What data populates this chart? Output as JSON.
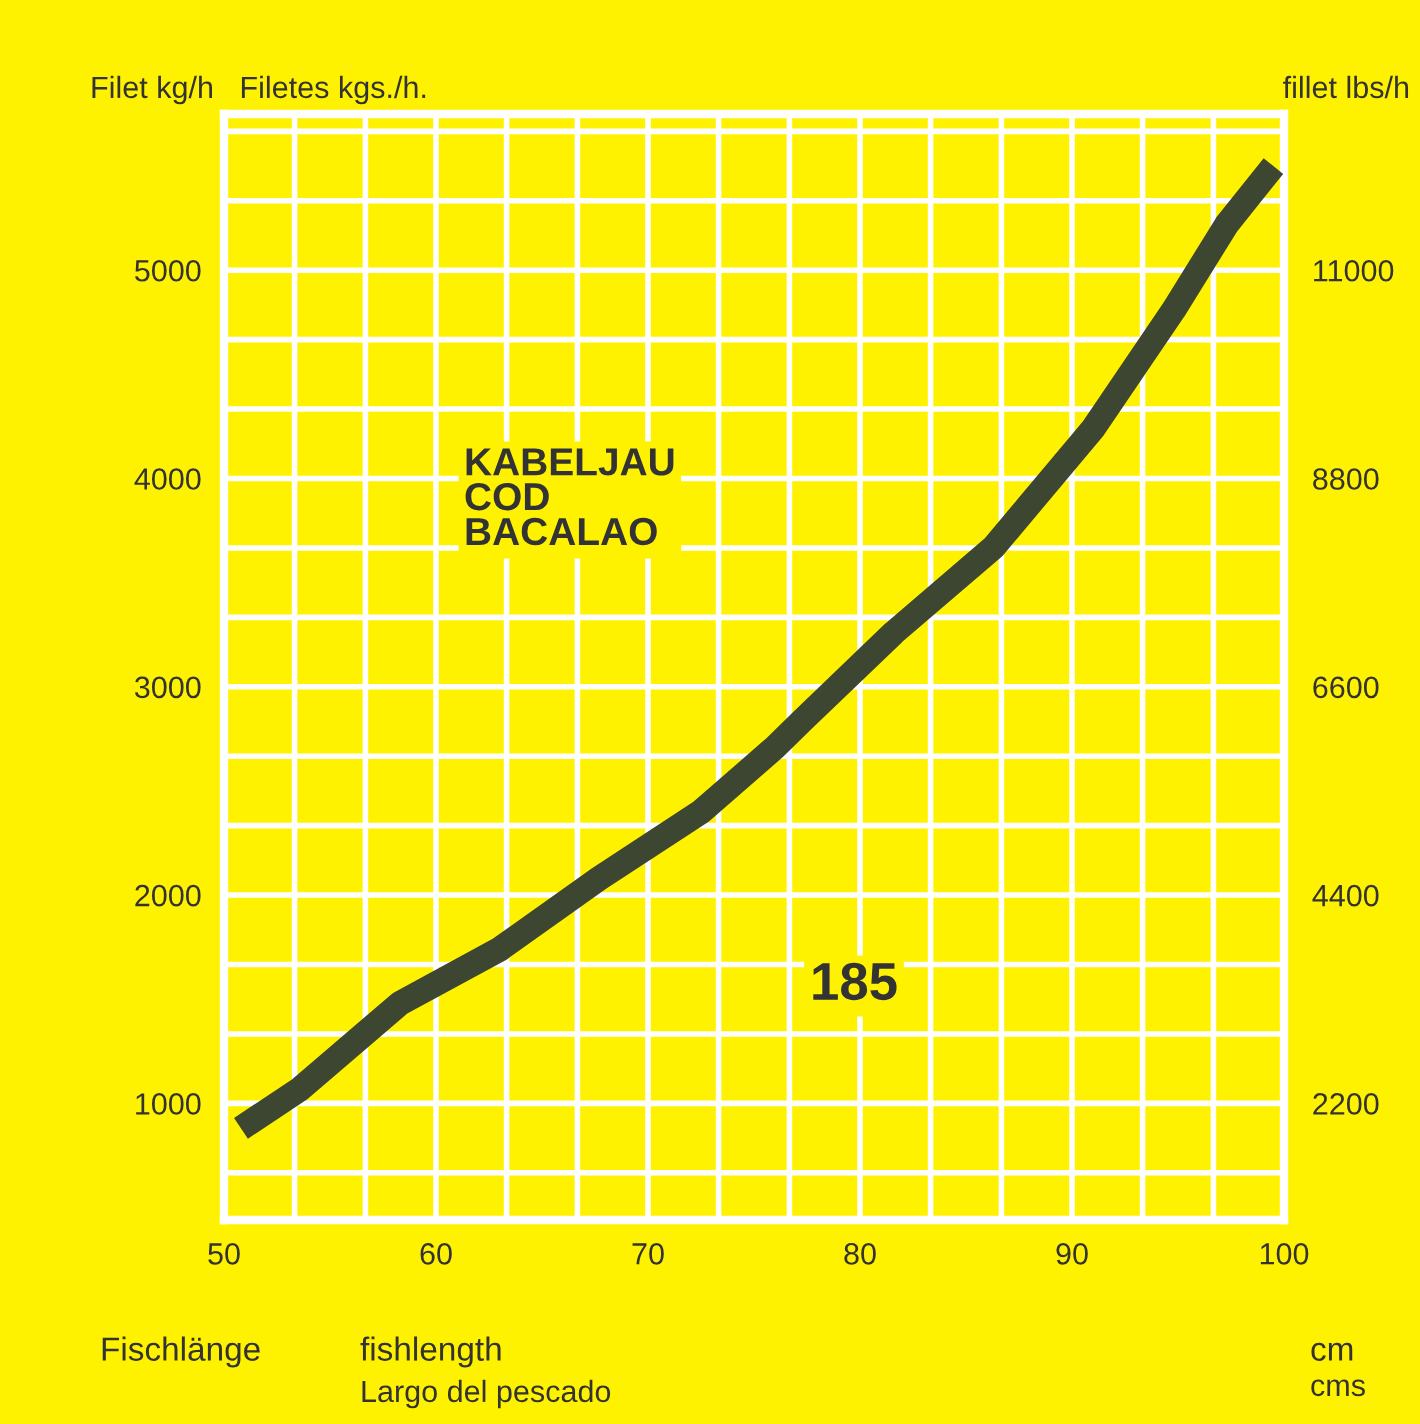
{
  "chart_data": {
    "type": "line",
    "ylabel": "Filet kg/h   Filetes kgs./h.",
    "y2label": "fillet lbs/h",
    "xlabel": "Fischlänge",
    "annotations": [
      "fishlength",
      "Largo del pescado",
      "cm",
      "cms",
      "KABELJAU\nCOD\nBACALAO",
      "185"
    ],
    "series": [
      {
        "color": "#3d4630",
        "x": [
          50.8,
          53.6,
          58.3,
          63,
          67.7,
          72.5,
          76,
          77.2,
          81.6,
          86.3,
          91,
          94.8,
          97.3,
          99.5
        ],
        "values": [
          880,
          1070,
          1480,
          1740,
          2080,
          2400,
          2710,
          2830,
          3260,
          3670,
          4240,
          4810,
          5220,
          5500
        ]
      }
    ],
    "xlim": [
      50,
      100
    ],
    "ylim": [
      440,
      5750
    ],
    "y2lim": [
      968,
      12650
    ],
    "xticks": [
      50,
      {
        "value": 53.33,
        "label": null
      },
      {
        "value": 56.67,
        "label": null
      },
      60,
      {
        "value": 63.33,
        "label": null
      },
      {
        "value": 66.67,
        "label": null
      },
      70,
      {
        "value": 73.33,
        "label": null
      },
      {
        "value": 76.67,
        "label": null
      },
      80,
      {
        "value": 83.33,
        "label": null
      },
      {
        "value": 86.67,
        "label": null
      },
      90,
      {
        "value": 93.33,
        "label": null
      },
      {
        "value": 96.67,
        "label": null
      },
      100
    ],
    "yticks": [
      {
        "value": 666.7,
        "label": null
      },
      1000,
      {
        "value": 1333.3,
        "label": null
      },
      {
        "value": 1666.7,
        "label": null
      },
      2000,
      {
        "value": 2333.3,
        "label": null
      },
      {
        "value": 2666.7,
        "label": null
      },
      3000,
      {
        "value": 3333.3,
        "label": null
      },
      {
        "value": 3666.7,
        "label": null
      },
      4000,
      {
        "value": 4333.3,
        "label": null
      },
      {
        "value": 4666.7,
        "label": null
      },
      5000,
      {
        "value": 5333.3,
        "label": null
      },
      {
        "value": 5666.7,
        "label": null
      }
    ],
    "y2ticks": [
      2200,
      4400,
      6600,
      8800,
      11000
    ],
    "grid": true,
    "marker": "none",
    "line_style": "solid"
  }
}
